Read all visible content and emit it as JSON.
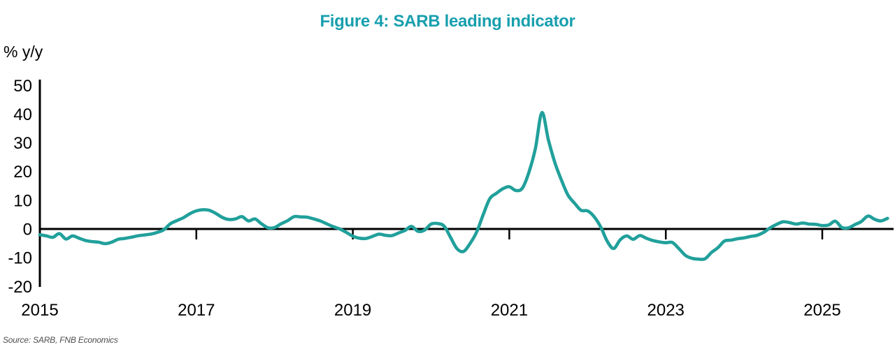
{
  "page": {
    "title": "Figure 4: SARB leading indicator",
    "y_axis_label": "% y/y",
    "source": "Source: SARB, FNB Economics"
  },
  "colors": {
    "title_teal": "#189fae",
    "line_teal": "#21a09b",
    "axis_black": "#000000",
    "source_gray": "#4d4d4d"
  },
  "chart_data": {
    "type": "line",
    "title": "Figure 4: SARB leading indicator",
    "ylabel": "% y/y",
    "series_name": "SARB leading indicator (% y/y)",
    "frequency": "monthly",
    "start": "2015-01",
    "end": "2025-11",
    "values": [
      -2.0,
      -2.4,
      -2.9,
      -1.6,
      -3.5,
      -2.4,
      -3.2,
      -4.0,
      -4.4,
      -4.6,
      -5.1,
      -4.6,
      -3.6,
      -3.3,
      -2.9,
      -2.4,
      -2.1,
      -1.8,
      -1.2,
      -0.3,
      1.8,
      2.9,
      3.9,
      5.3,
      6.3,
      6.7,
      6.5,
      5.4,
      4.0,
      3.3,
      3.5,
      4.3,
      2.8,
      3.5,
      1.8,
      0.4,
      0.5,
      1.8,
      2.9,
      4.3,
      4.2,
      4.1,
      3.5,
      2.8,
      1.8,
      0.8,
      0.0,
      -1.2,
      -2.5,
      -3.2,
      -3.3,
      -2.6,
      -1.8,
      -2.2,
      -2.3,
      -1.4,
      -0.5,
      0.9,
      -0.8,
      -0.4,
      1.7,
      1.9,
      1.0,
      -3.0,
      -6.9,
      -7.8,
      -5.0,
      -1.0,
      5.0,
      10.5,
      12.4,
      14.0,
      14.7,
      13.4,
      14.2,
      19.7,
      28.0,
      40.5,
      31.0,
      23.0,
      17.0,
      11.8,
      9.0,
      6.5,
      6.3,
      4.3,
      0.8,
      -4.2,
      -6.8,
      -3.8,
      -2.4,
      -3.6,
      -2.3,
      -3.2,
      -4.0,
      -4.5,
      -4.8,
      -4.7,
      -6.8,
      -9.2,
      -10.2,
      -10.5,
      -10.4,
      -8.2,
      -6.5,
      -4.2,
      -3.9,
      -3.4,
      -3.1,
      -2.6,
      -2.2,
      -1.2,
      0.4,
      1.6,
      2.5,
      2.2,
      1.7,
      2.1,
      1.7,
      1.6,
      1.2,
      1.4,
      2.7,
      0.5,
      0.4,
      1.5,
      2.6,
      4.5,
      3.4,
      2.8,
      3.7
    ],
    "y_ticks": [
      50,
      40,
      30,
      20,
      10,
      0,
      -10,
      -20
    ],
    "x_tick_years": [
      2015,
      2017,
      2019,
      2021,
      2023,
      2025
    ],
    "ylim": [
      -20,
      50
    ],
    "grid": false,
    "legend": "none",
    "line_color": "#21a09b"
  }
}
